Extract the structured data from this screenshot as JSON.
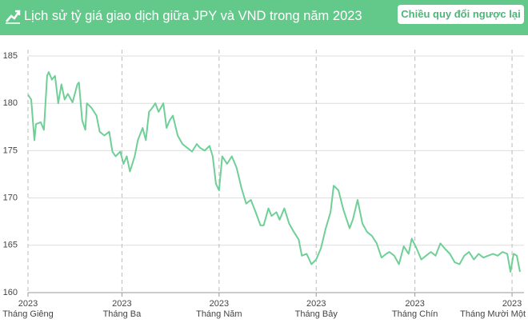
{
  "header": {
    "title": "Lịch sử tỷ giá giao dịch giữa JPY và VND trong năm 2023",
    "button": "Chiều quy đổi ngược lại"
  },
  "chart_data": {
    "type": "line",
    "x": [
      0,
      2,
      4,
      5,
      8,
      10,
      12,
      13,
      15,
      17,
      19,
      21,
      23,
      25,
      28,
      31,
      32,
      34,
      36,
      37,
      40,
      43,
      45,
      48,
      51,
      53,
      55,
      58,
      60,
      62,
      64,
      67,
      69,
      72,
      74,
      76,
      78,
      80,
      82,
      85,
      87,
      89,
      91,
      94,
      97,
      100,
      103,
      106,
      108,
      111,
      114,
      116,
      118,
      120,
      122,
      125,
      128,
      131,
      134,
      137,
      140,
      143,
      146,
      148,
      151,
      153,
      156,
      158,
      161,
      164,
      167,
      170,
      172,
      175,
      178,
      181,
      184,
      187,
      190,
      192,
      195,
      198,
      202,
      204,
      207,
      210,
      213,
      216,
      219,
      222,
      225,
      227,
      230,
      233,
      236,
      239,
      241,
      244,
      247,
      250,
      253,
      256,
      259,
      262,
      265,
      268,
      271,
      274,
      277,
      280,
      283,
      286,
      289,
      292,
      295,
      298,
      301,
      303,
      305,
      307,
      309
    ],
    "values": [
      180.9,
      180.4,
      176.1,
      177.8,
      178,
      177.2,
      182.9,
      183.3,
      182.5,
      182.9,
      180,
      182,
      180.4,
      181,
      180.1,
      182,
      182.2,
      178.2,
      177.2,
      180,
      179.5,
      178.7,
      177,
      176.6,
      177,
      174.9,
      174.4,
      174.9,
      173.6,
      174.4,
      172.8,
      174.4,
      176.1,
      177.4,
      176.1,
      179.1,
      179.5,
      180,
      179.1,
      180,
      177.4,
      178.2,
      178.7,
      176.6,
      175.7,
      175.3,
      174.9,
      175.7,
      175.3,
      175,
      175.5,
      174.4,
      171.5,
      170.8,
      174.4,
      173.6,
      174.4,
      173.2,
      171.1,
      169.4,
      169.8,
      168.5,
      167.1,
      167.1,
      168.9,
      168.1,
      168.5,
      167.7,
      168.9,
      167.3,
      166.4,
      165.6,
      163.9,
      164.1,
      163,
      163.5,
      164.7,
      166.8,
      168.5,
      171.3,
      170.8,
      168.8,
      166.8,
      167.7,
      169.8,
      167.3,
      166.4,
      166,
      165.2,
      163.7,
      164.1,
      164.3,
      163.9,
      163,
      164.9,
      164.1,
      165.7,
      164.7,
      163.5,
      163.9,
      164.3,
      163.9,
      165.2,
      164.6,
      164.1,
      163.2,
      163,
      163.9,
      164.3,
      163.5,
      164.1,
      163.7,
      163.9,
      164.1,
      163.9,
      164.3,
      164.1,
      162.2,
      164.1,
      163.9,
      162.2
    ],
    "color": "#6fcf97",
    "xlim": [
      0,
      310
    ],
    "xticks": [
      {
        "value": 0,
        "label": "Tháng Giêng",
        "year": "2023"
      },
      {
        "value": 59,
        "label": "Tháng Ba",
        "year": "2023"
      },
      {
        "value": 120,
        "label": "Tháng Năm",
        "year": "2023"
      },
      {
        "value": 181,
        "label": "Tháng Bảy",
        "year": "2023"
      },
      {
        "value": 243,
        "label": "Tháng Chín",
        "year": "2023"
      },
      {
        "value": 304,
        "label": "Tháng Mười Một",
        "year": "2023"
      }
    ],
    "ylim": [
      160,
      185
    ],
    "yticks": [
      160,
      165,
      170,
      175,
      180,
      185
    ],
    "grid": true
  }
}
